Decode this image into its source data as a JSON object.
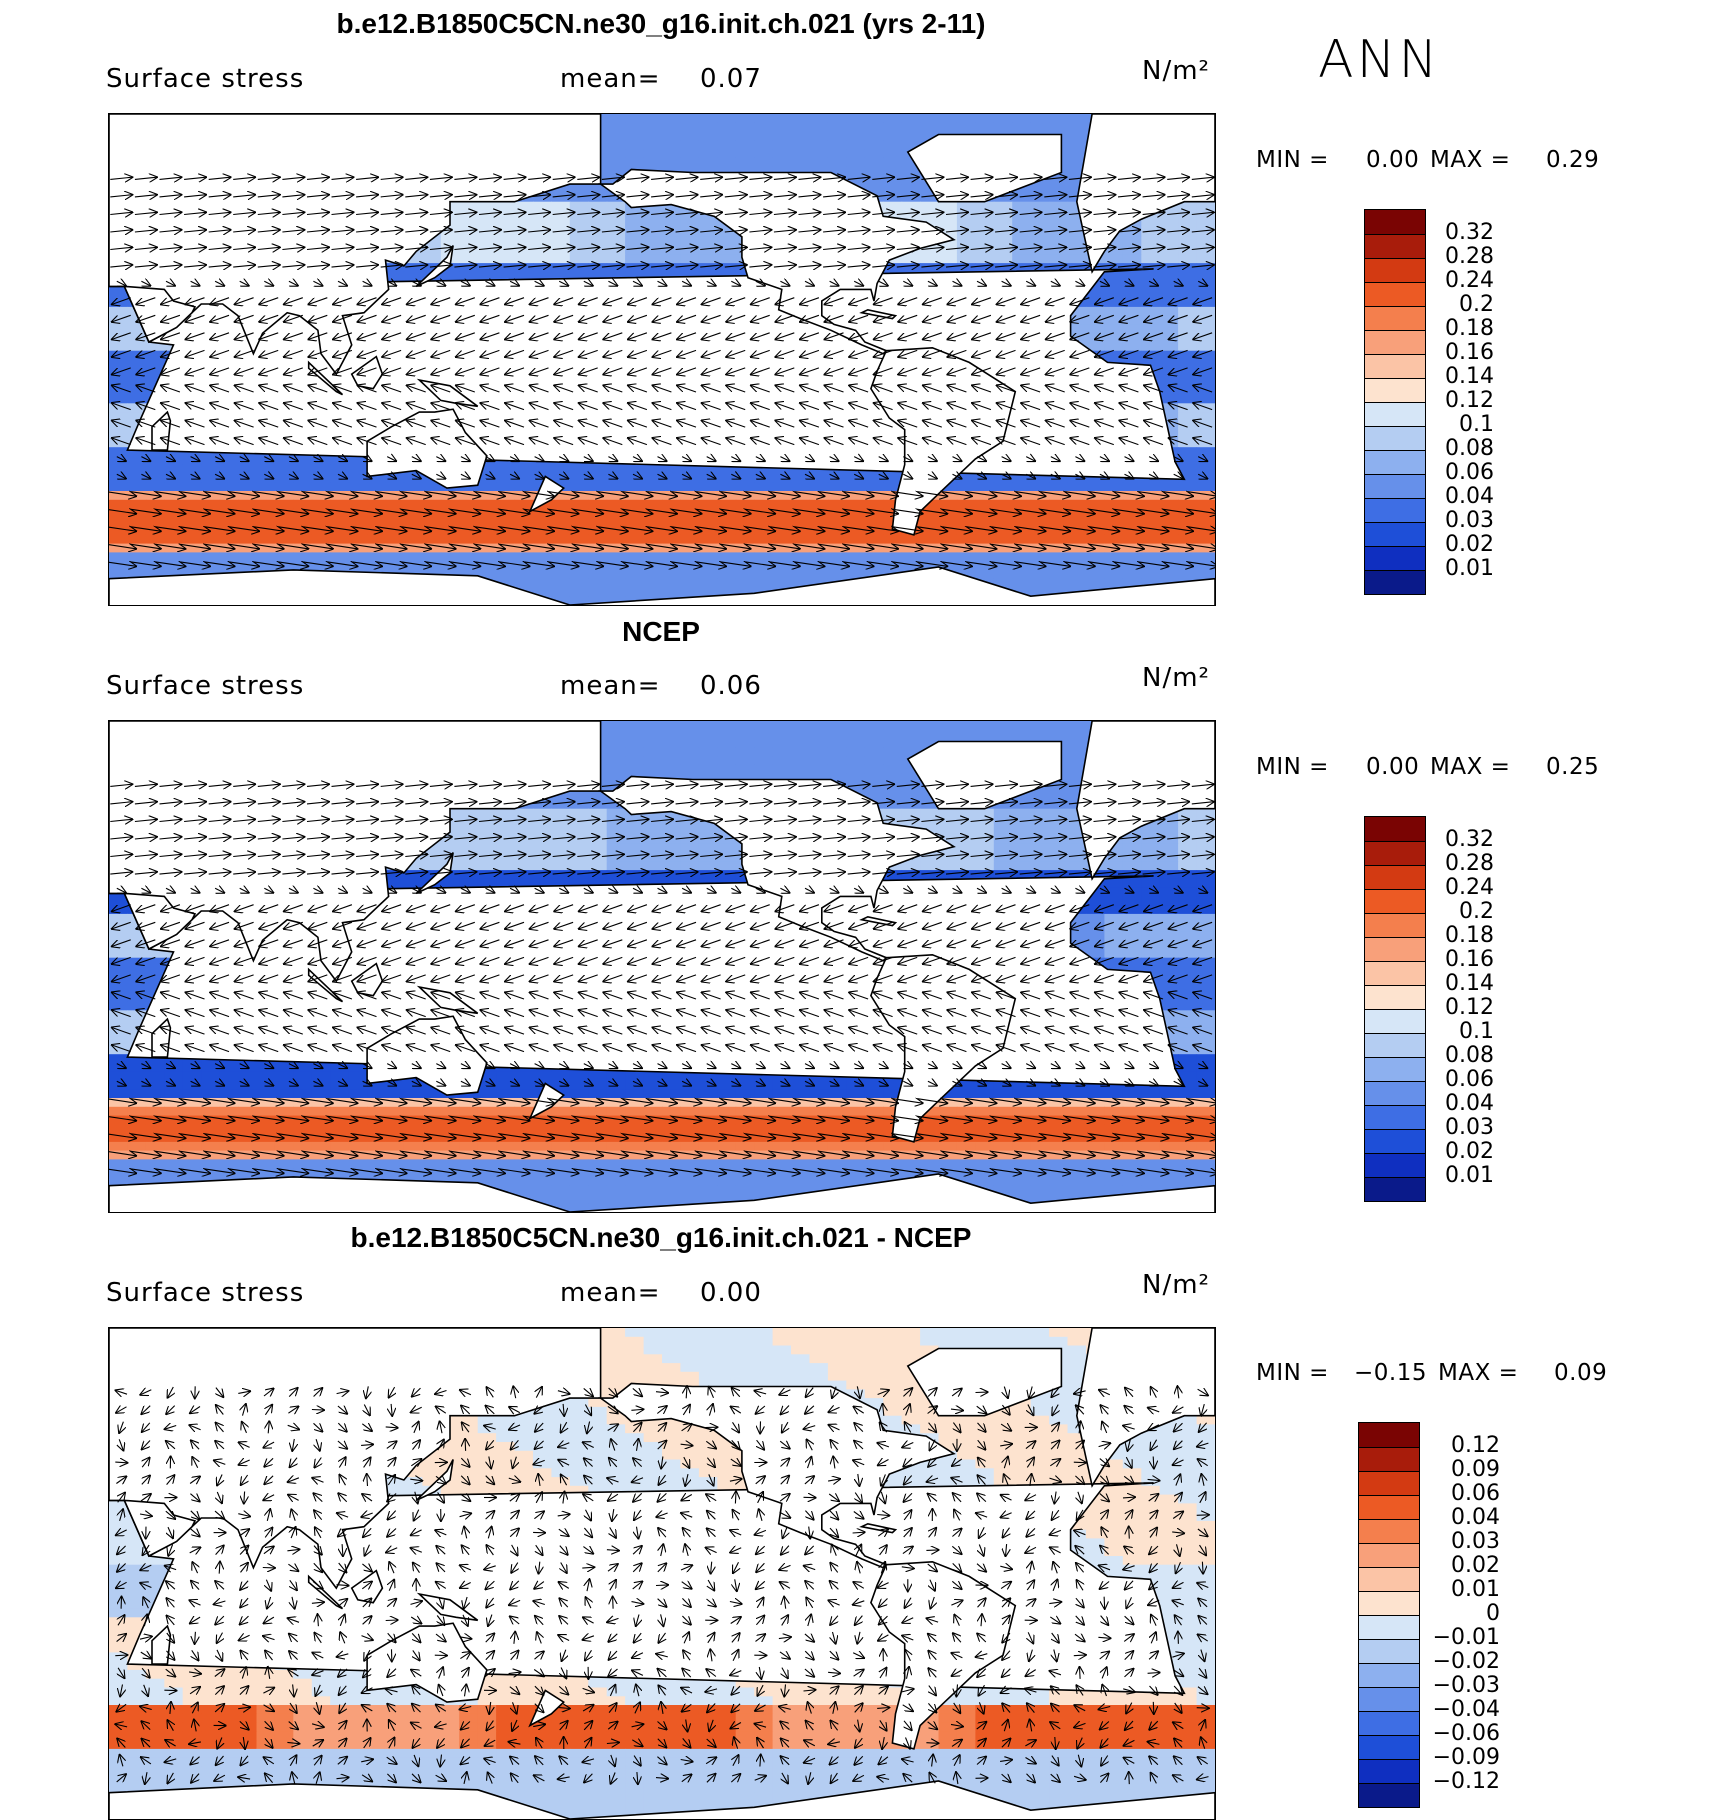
{
  "season": "ANN",
  "panels": [
    {
      "id": "model",
      "title": "b.e12.B1850C5CN.ne30_g16.init.ch.021 (yrs 2-11)",
      "variable": "Surface stress",
      "mean_label": "mean=",
      "mean_value": "0.07",
      "units": "N/m²",
      "min_label": "MIN =",
      "min_value": "0.00",
      "max_label": "MAX =",
      "max_value": "0.29",
      "colorbar_labels": [
        "0.32",
        "0.28",
        "0.24",
        "0.2",
        "0.18",
        "0.16",
        "0.14",
        "0.12",
        "0.1",
        "0.08",
        "0.06",
        "0.04",
        "0.03",
        "0.02",
        "0.01"
      ]
    },
    {
      "id": "obs",
      "title": "NCEP",
      "variable": "Surface stress",
      "mean_label": "mean=",
      "mean_value": "0.06",
      "units": "N/m²",
      "min_label": "MIN =",
      "min_value": "0.00",
      "max_label": "MAX =",
      "max_value": "0.25",
      "colorbar_labels": [
        "0.32",
        "0.28",
        "0.24",
        "0.2",
        "0.18",
        "0.16",
        "0.14",
        "0.12",
        "0.1",
        "0.08",
        "0.06",
        "0.04",
        "0.03",
        "0.02",
        "0.01"
      ]
    },
    {
      "id": "diff",
      "title": "b.e12.B1850C5CN.ne30_g16.init.ch.021 - NCEP",
      "variable": "Surface stress",
      "mean_label": "mean=",
      "mean_value": "0.00",
      "units": "N/m²",
      "min_label": "MIN =",
      "min_value": "−0.15",
      "max_label": "MAX =",
      "max_value": "0.09",
      "colorbar_labels": [
        "0.12",
        "0.09",
        "0.06",
        "0.04",
        "0.03",
        "0.02",
        "0.01",
        "0",
        "−0.01",
        "−0.02",
        "−0.03",
        "−0.04",
        "−0.06",
        "−0.09",
        "−0.12"
      ]
    }
  ],
  "colors": {
    "seq": [
      "#7a0403",
      "#a81c0b",
      "#d33a12",
      "#ec5a24",
      "#f47f4d",
      "#f8a07a",
      "#fbc4a6",
      "#fde3cf",
      "#d6e6f7",
      "#b4cdf2",
      "#8db0ef",
      "#6690ea",
      "#3e6ee4",
      "#1e4fd8",
      "#0f2fc0",
      "#0a1a8a"
    ],
    "diff": [
      "#7a0403",
      "#a81c0b",
      "#d33a12",
      "#ec5a24",
      "#f47f4d",
      "#f8a07a",
      "#fbc4a6",
      "#fde3cf",
      "#d6e6f7",
      "#b4cdf2",
      "#8db0ef",
      "#6690ea",
      "#3e6ee4",
      "#1e4fd8",
      "#0f2fc0",
      "#0a1a8a"
    ]
  },
  "chart_data": [
    {
      "type": "heatmap",
      "title": "b.e12.B1850C5CN.ne30_g16.init.ch.021 (yrs 2-11)",
      "subtitle": "Surface stress",
      "units": "N/m²",
      "mean": 0.07,
      "min": 0.0,
      "max": 0.29,
      "levels": [
        0.01,
        0.02,
        0.03,
        0.04,
        0.06,
        0.08,
        0.1,
        0.12,
        0.14,
        0.16,
        0.18,
        0.2,
        0.24,
        0.28,
        0.32
      ],
      "overlay": "wind stress vectors",
      "season": "ANN"
    },
    {
      "type": "heatmap",
      "title": "NCEP",
      "subtitle": "Surface stress",
      "units": "N/m²",
      "mean": 0.06,
      "min": 0.0,
      "max": 0.25,
      "levels": [
        0.01,
        0.02,
        0.03,
        0.04,
        0.06,
        0.08,
        0.1,
        0.12,
        0.14,
        0.16,
        0.18,
        0.2,
        0.24,
        0.28,
        0.32
      ],
      "overlay": "wind stress vectors"
    },
    {
      "type": "heatmap",
      "title": "b.e12.B1850C5CN.ne30_g16.init.ch.021 - NCEP",
      "subtitle": "Surface stress",
      "units": "N/m²",
      "mean": 0.0,
      "min": -0.15,
      "max": 0.09,
      "levels": [
        -0.12,
        -0.09,
        -0.06,
        -0.04,
        -0.03,
        -0.02,
        -0.01,
        0,
        0.01,
        0.02,
        0.03,
        0.04,
        0.06,
        0.09,
        0.12
      ],
      "overlay": "wind stress difference vectors"
    }
  ]
}
